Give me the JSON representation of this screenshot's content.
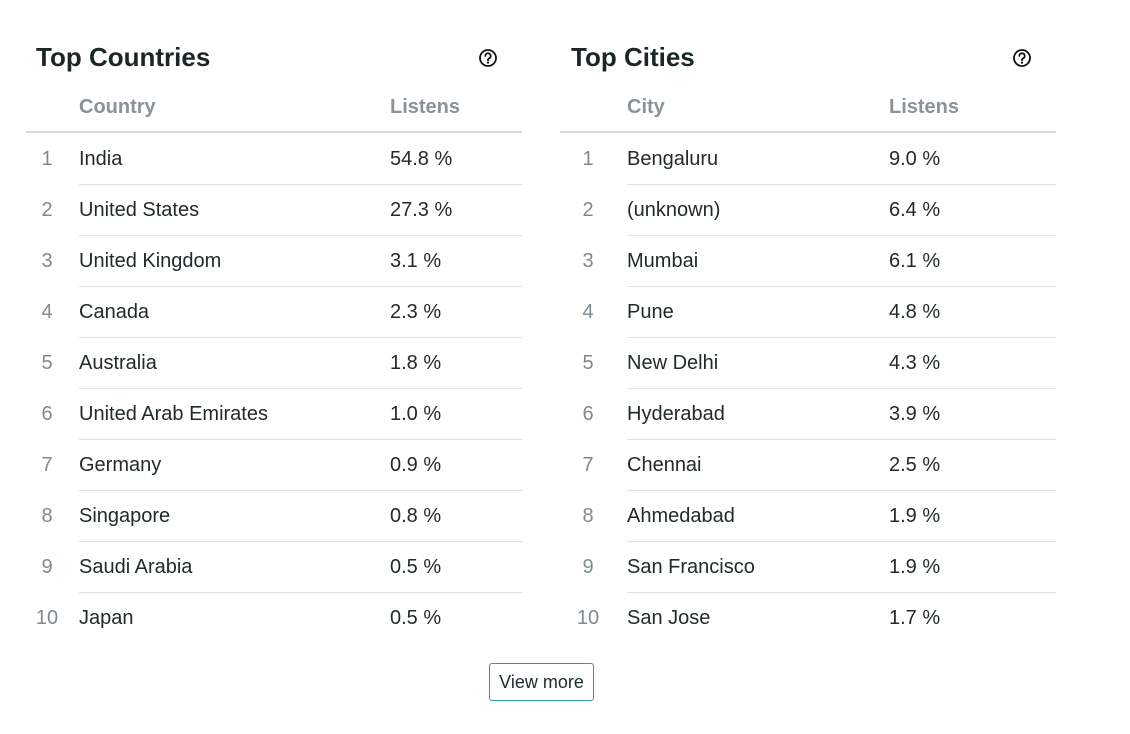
{
  "panels": [
    {
      "title": "Top Countries",
      "columns": [
        "Country",
        "Listens"
      ],
      "rows": [
        [
          "1",
          "India",
          "54.8 %"
        ],
        [
          "2",
          "United States",
          "27.3 %"
        ],
        [
          "3",
          "United Kingdom",
          "3.1 %"
        ],
        [
          "4",
          "Canada",
          "2.3 %"
        ],
        [
          "5",
          "Australia",
          "1.8 %"
        ],
        [
          "6",
          "United Arab Emirates",
          "1.0 %"
        ],
        [
          "7",
          "Germany",
          "0.9 %"
        ],
        [
          "8",
          "Singapore",
          "0.8 %"
        ],
        [
          "9",
          "Saudi Arabia",
          "0.5 %"
        ],
        [
          "10",
          "Japan",
          "0.5 %"
        ]
      ]
    },
    {
      "title": "Top Cities",
      "columns": [
        "City",
        "Listens"
      ],
      "rows": [
        [
          "1",
          "Bengaluru",
          "9.0 %"
        ],
        [
          "2",
          "(unknown)",
          "6.4 %"
        ],
        [
          "3",
          "Mumbai",
          "6.1 %"
        ],
        [
          "4",
          "Pune",
          "4.8 %"
        ],
        [
          "5",
          "New Delhi",
          "4.3 %"
        ],
        [
          "6",
          "Hyderabad",
          "3.9 %"
        ],
        [
          "7",
          "Chennai",
          "2.5 %"
        ],
        [
          "8",
          "Ahmedabad",
          "1.9 %"
        ],
        [
          "9",
          "San Francisco",
          "1.9 %"
        ],
        [
          "10",
          "San Jose",
          "1.7 %"
        ]
      ]
    }
  ],
  "button": "View more"
}
